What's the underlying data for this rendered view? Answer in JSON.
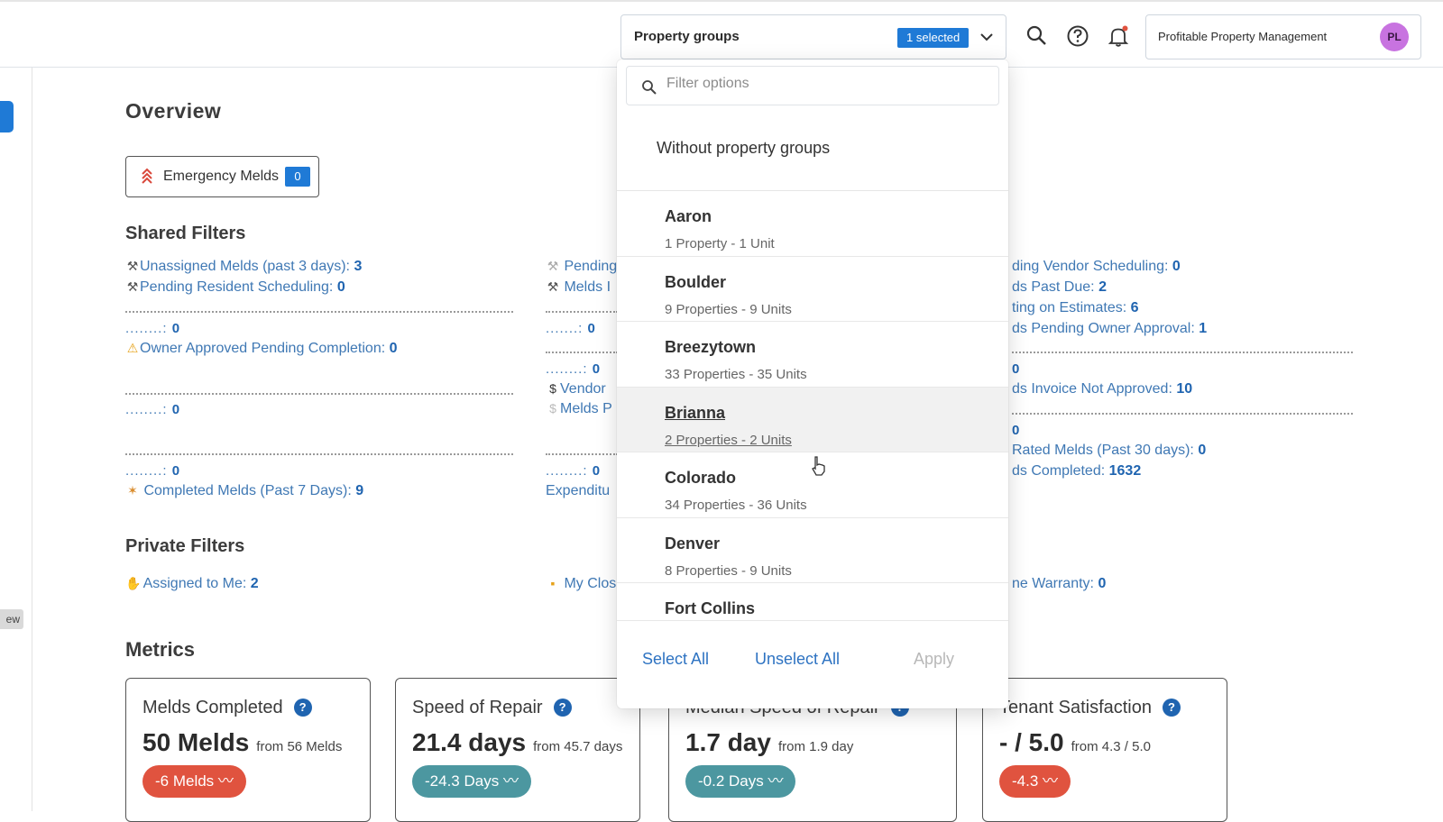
{
  "topbar": {
    "property_groups_label": "Property groups",
    "selected_badge": "1 selected",
    "org_name": "Profitable Property Management",
    "avatar_initials": "PL"
  },
  "left_rail": {
    "badge_text": "ew"
  },
  "overview": {
    "title": "Overview",
    "emergency_label": "Emergency Melds",
    "emergency_count": "0"
  },
  "shared_filters": {
    "title": "Shared Filters",
    "col1": {
      "unassigned_label": "Unassigned Melds (past 3 days):",
      "unassigned_value": "3",
      "pending_resident_label": "Pending Resident Scheduling:",
      "pending_resident_value": "0",
      "row3_prefix": "........:",
      "row3_value": "0",
      "owner_approved_label": "Owner Approved Pending Completion:",
      "owner_approved_value": "0",
      "row5_prefix": "........:",
      "row5_value": "0",
      "row6_prefix": "........:",
      "row6_value": "0",
      "completed_label": "Completed Melds (Past 7 Days):",
      "completed_value": "9"
    },
    "col2": {
      "pending_label": "Pending",
      "melds_label": "Melds I",
      "row3_prefix": ".......:",
      "row3_value": "0",
      "row4_prefix": "........:",
      "row4_value": "0",
      "vendor_label": "Vendor",
      "melds_p_label": "Melds P",
      "row7_prefix": "........:",
      "row7_value": "0",
      "expenditure_label": "Expenditu"
    },
    "col3": {
      "vendor_sched_label": "ding Vendor Scheduling:",
      "vendor_sched_value": "0",
      "past_due_label": "ds Past Due:",
      "past_due_value": "2",
      "estimates_label": "ting on Estimates:",
      "estimates_value": "6",
      "owner_approval_label": "ds Pending Owner Approval:",
      "owner_approval_value": "1",
      "row5_value": "0",
      "invoice_label": "ds Invoice Not Approved:",
      "invoice_value": "10",
      "row7_value": "0",
      "rated_label": "Rated Melds (Past 30 days):",
      "rated_value": "0",
      "completed_label": "ds Completed:",
      "completed_value": "1632"
    }
  },
  "private_filters": {
    "title": "Private Filters",
    "assigned_label": "Assigned to Me:",
    "assigned_value": "2",
    "my_clos_label": "My Clos",
    "warranty_label": "ne Warranty:",
    "warranty_value": "0"
  },
  "metrics": {
    "title": "Metrics",
    "cards": [
      {
        "title": "Melds Completed",
        "value": "50 Melds",
        "from": "from 56 Melds",
        "delta": "-6 Melds",
        "delta_color": "#e0533f"
      },
      {
        "title": "Speed of Repair",
        "value": "21.4 days",
        "from": "from 45.7 days",
        "delta": "-24.3 Days",
        "delta_color": "#4c97a0"
      },
      {
        "title": "Median Speed of Repair",
        "value": "1.7 day",
        "from": "from 1.9 day",
        "delta": "-0.2 Days",
        "delta_color": "#4c97a0"
      },
      {
        "title": "Tenant Satisfaction",
        "value": "- / 5.0",
        "from": "from 4.3 / 5.0",
        "delta": "-4.3",
        "delta_color": "#e0533f"
      }
    ]
  },
  "dropdown": {
    "filter_placeholder": "Filter options",
    "without_groups": "Without property groups",
    "items": [
      {
        "name": "Aaron",
        "sub": "1 Property - 1 Unit"
      },
      {
        "name": "Boulder",
        "sub": "9 Properties - 9 Units"
      },
      {
        "name": "Breezytown",
        "sub": "33 Properties - 35 Units"
      },
      {
        "name": "Brianna",
        "sub": "2 Properties - 2 Units"
      },
      {
        "name": "Colorado",
        "sub": "34 Properties - 36 Units"
      },
      {
        "name": "Denver",
        "sub": "8 Properties - 9 Units"
      },
      {
        "name": "Fort Collins",
        "sub": ""
      }
    ],
    "select_all": "Select All",
    "unselect_all": "Unselect All",
    "apply": "Apply"
  },
  "colors": {
    "accent_blue": "#1f7ad6",
    "link_blue": "#3f78b4",
    "delta_red": "#e0533f",
    "delta_teal": "#4c97a0",
    "avatar_purple": "#c873e0"
  }
}
